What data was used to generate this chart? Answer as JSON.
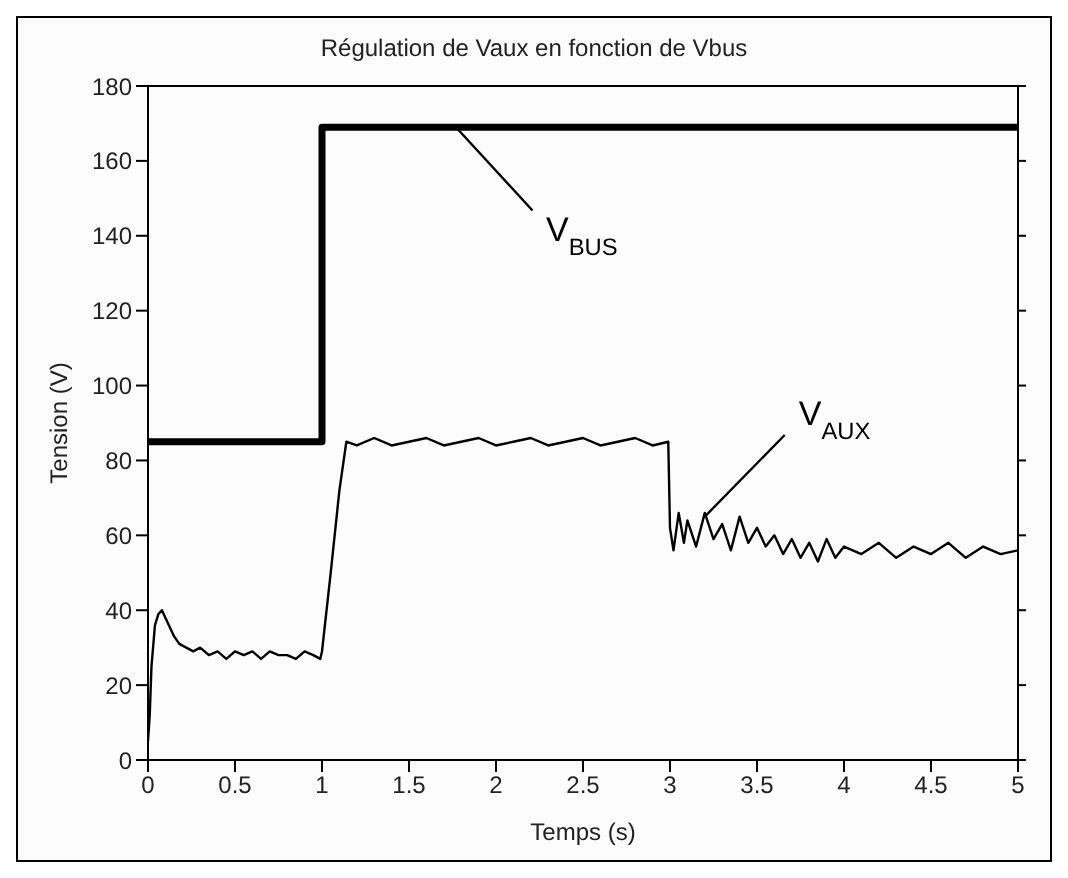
{
  "chart_data": {
    "type": "line",
    "title": "Régulation de Vaux en fonction de Vbus",
    "xlabel": "Temps (s)",
    "ylabel": "Tension (V)",
    "xlim": [
      0,
      5
    ],
    "xticks": [
      0,
      0.5,
      1,
      1.5,
      2,
      2.5,
      3,
      3.5,
      4,
      4.5,
      5
    ],
    "ylim": [
      0,
      180
    ],
    "yticks": [
      0,
      20,
      40,
      60,
      80,
      100,
      120,
      140,
      160,
      180
    ],
    "grid": false,
    "line_style": "solid",
    "marker": "none",
    "series": [
      {
        "color": "#000000",
        "x": [
          0,
          1,
          1,
          5
        ],
        "values": [
          85,
          85,
          169,
          169
        ]
      },
      {
        "color": "#000000",
        "x": [
          0,
          0.01,
          0.02,
          0.04,
          0.06,
          0.08,
          0.1,
          0.12,
          0.15,
          0.18,
          0.22,
          0.26,
          0.3,
          0.35,
          0.4,
          0.45,
          0.5,
          0.55,
          0.6,
          0.65,
          0.7,
          0.75,
          0.8,
          0.85,
          0.9,
          0.95,
          0.99,
          1.0,
          1.05,
          1.1,
          1.14,
          1.2,
          1.3,
          1.4,
          1.5,
          1.6,
          1.7,
          1.8,
          1.9,
          2.0,
          2.1,
          2.2,
          2.3,
          2.4,
          2.5,
          2.6,
          2.7,
          2.8,
          2.9,
          2.99,
          3.0,
          3.02,
          3.05,
          3.08,
          3.1,
          3.15,
          3.2,
          3.25,
          3.3,
          3.35,
          3.4,
          3.45,
          3.5,
          3.55,
          3.6,
          3.65,
          3.7,
          3.75,
          3.8,
          3.85,
          3.9,
          3.95,
          4.0,
          4.1,
          4.2,
          4.3,
          4.4,
          4.5,
          4.6,
          4.7,
          4.8,
          4.9,
          5.0
        ],
        "values": [
          5,
          12,
          25,
          36,
          39,
          40,
          38,
          36,
          33,
          31,
          30,
          29,
          30,
          28,
          29,
          27,
          29,
          28,
          29,
          27,
          29,
          28,
          28,
          27,
          29,
          28,
          27,
          29,
          50,
          72,
          85,
          84,
          86,
          84,
          85,
          86,
          84,
          85,
          86,
          84,
          85,
          86,
          84,
          85,
          86,
          84,
          85,
          86,
          84,
          85,
          62,
          56,
          66,
          58,
          64,
          57,
          66,
          59,
          63,
          56,
          65,
          58,
          62,
          57,
          60,
          55,
          59,
          54,
          58,
          53,
          59,
          54,
          57,
          55,
          58,
          54,
          57,
          55,
          58,
          54,
          57,
          55,
          56
        ]
      }
    ],
    "annotations": [
      {
        "text": "V$_{BUS}$",
        "x": 1.77,
        "y": 169
      },
      {
        "text": "V$_{AUX}$",
        "x": 3.2,
        "y": 65
      }
    ]
  }
}
